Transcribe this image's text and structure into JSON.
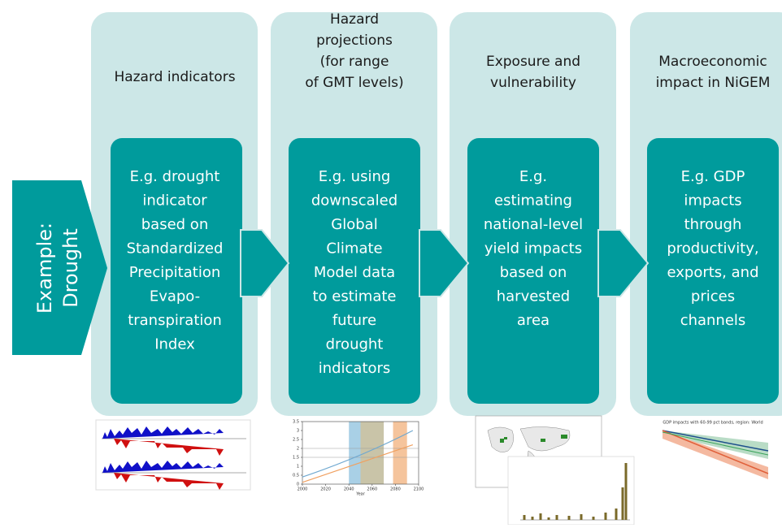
{
  "example": [
    "Example:",
    "Drought"
  ],
  "columns": [
    {
      "heading": [
        "Hazard indicators"
      ],
      "body": [
        "E.g. drought",
        "indicator",
        "based on",
        "Standardized",
        "Precipitation",
        "Evapo-",
        "transpiration",
        "Index"
      ]
    },
    {
      "heading": [
        "Hazard",
        "projections",
        "(for range",
        "of GMT levels)"
      ],
      "body": [
        "E.g. using",
        "downscaled",
        "Global",
        "Climate",
        "Model data",
        "to estimate",
        "future",
        "drought",
        "indicators"
      ]
    },
    {
      "heading": [
        "Exposure and",
        "vulnerability"
      ],
      "body": [
        "E.g.",
        "estimating",
        "national-level",
        "yield impacts",
        "based on",
        "harvested",
        "area"
      ]
    },
    {
      "heading": [
        "Macroeconomic",
        "impact in NiGEM"
      ],
      "body": [
        "E.g. GDP",
        "impacts",
        "through",
        "productivity,",
        "exports, and",
        "prices",
        "channels"
      ]
    }
  ],
  "projection_figure": {
    "xticks": [
      2000,
      2020,
      2040,
      2060,
      2080,
      2100
    ],
    "xlabel": "Year",
    "yticks": [
      0,
      0.5,
      1,
      1.5,
      2,
      2.5,
      3,
      3.5
    ]
  },
  "gdp_figure": {
    "title": "GDP impacts with 60-99 pct bands, region: World"
  }
}
